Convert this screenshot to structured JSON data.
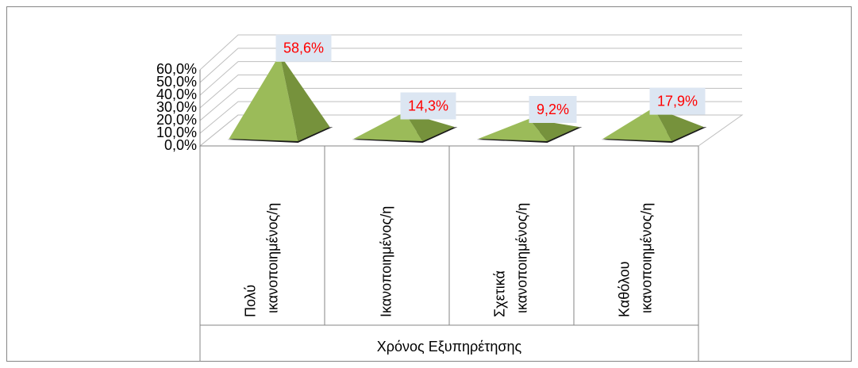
{
  "chart_data": {
    "type": "pyramid3d",
    "categories": [
      "Πολύ ικανοποιημένος/η",
      "Ικανοποιημένος/η",
      "Σχετικά ικανοποιημένος/η",
      "Καθόλου ικανοποιημένος/η"
    ],
    "values": [
      58.6,
      14.3,
      9.2,
      17.9
    ],
    "value_labels": [
      "58,6%",
      "14,3%",
      "9,2%",
      "17,9%"
    ],
    "color": "#9bbb59",
    "x_group_label": "Χρόνος Εξυπηρέτησης",
    "ylim": [
      0,
      60
    ],
    "yticks": [
      {
        "value": 0,
        "label": "0,0%"
      },
      {
        "value": 10,
        "label": "10,0%"
      },
      {
        "value": 20,
        "label": "20,0%"
      },
      {
        "value": 30,
        "label": "30,0%"
      },
      {
        "value": 40,
        "label": "40,0%"
      },
      {
        "value": 50,
        "label": "50,0%"
      },
      {
        "value": 60,
        "label": "60,0%"
      }
    ],
    "grid": true
  }
}
